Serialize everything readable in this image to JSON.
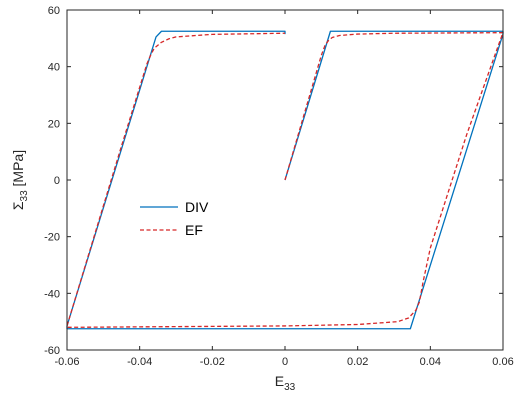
{
  "chart_data": {
    "type": "line",
    "xlabel_base": "E",
    "xlabel_sub": "33",
    "ylabel_base": "Σ",
    "ylabel_sub": "33",
    "ylabel_unit": " [MPa]",
    "xlim": [
      -0.06,
      0.06
    ],
    "ylim": [
      -60,
      60
    ],
    "xticks": [
      -0.06,
      -0.04,
      -0.02,
      0,
      0.02,
      0.04,
      0.06
    ],
    "xtick_labels": [
      "-0.06",
      "-0.04",
      "-0.02",
      "0",
      "0.02",
      "0.04",
      "0.06"
    ],
    "yticks": [
      -60,
      -40,
      -20,
      0,
      20,
      40,
      60
    ],
    "ytick_labels": [
      "-60",
      "-40",
      "-20",
      "0",
      "20",
      "40",
      "60"
    ],
    "grid": false,
    "legend_position": "center-left",
    "series": [
      {
        "name": "DIV",
        "color": "#0072BD",
        "style": "solid",
        "points": [
          [
            0,
            0
          ],
          [
            0.0125,
            52.5
          ],
          [
            0.06,
            52.5
          ],
          [
            0.06,
            51.5
          ],
          [
            0.0345,
            -52.5
          ],
          [
            -0.06,
            -52.5
          ],
          [
            -0.06,
            -51.5
          ],
          [
            -0.0355,
            50.5
          ],
          [
            -0.034,
            52.5
          ],
          [
            0,
            52.5
          ],
          [
            0,
            51.5
          ]
        ]
      },
      {
        "name": "EF",
        "color": "#D62728",
        "style": "dashed",
        "points": [
          [
            0,
            0
          ],
          [
            0.01,
            44
          ],
          [
            0.011,
            47.5
          ],
          [
            0.012,
            49.3
          ],
          [
            0.013,
            50.3
          ],
          [
            0.015,
            51
          ],
          [
            0.02,
            51.5
          ],
          [
            0.03,
            51.8
          ],
          [
            0.06,
            52
          ],
          [
            0.059,
            48.5
          ],
          [
            0.05,
            16
          ],
          [
            0.04,
            -24
          ],
          [
            0.038,
            -36
          ],
          [
            0.037,
            -43
          ],
          [
            0.036,
            -46
          ],
          [
            0.034,
            -48.7
          ],
          [
            0.031,
            -50
          ],
          [
            0.02,
            -51
          ],
          [
            0,
            -51.5
          ],
          [
            -0.06,
            -52
          ],
          [
            -0.06,
            -51.5
          ],
          [
            -0.045,
            12
          ],
          [
            -0.038,
            41
          ],
          [
            -0.037,
            44
          ],
          [
            -0.036,
            46.5
          ],
          [
            -0.034,
            48.6
          ],
          [
            -0.032,
            49.8
          ],
          [
            -0.03,
            50.5
          ],
          [
            -0.02,
            51.4
          ],
          [
            0,
            51.8
          ]
        ]
      }
    ]
  }
}
